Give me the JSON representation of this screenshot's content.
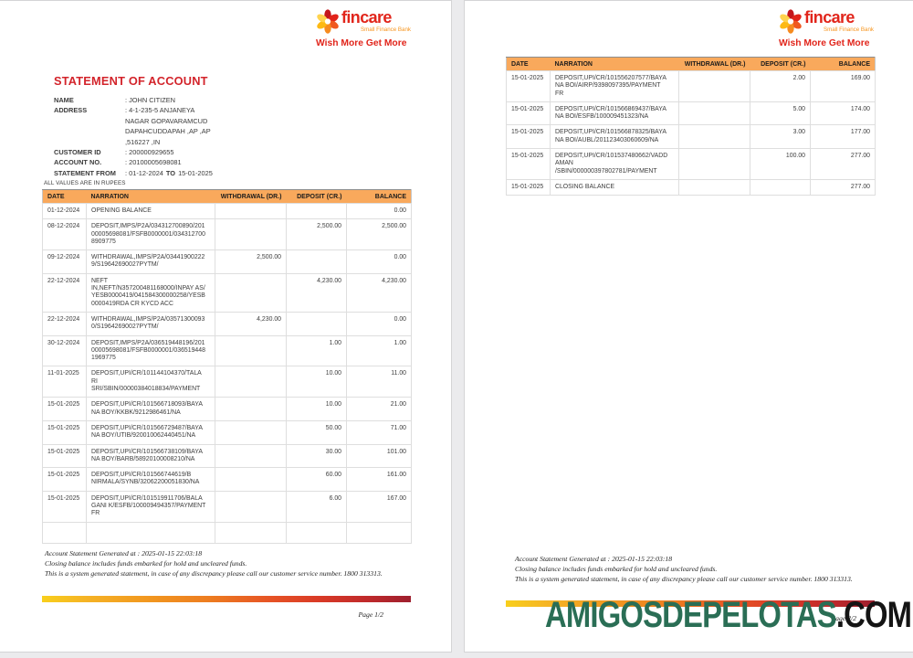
{
  "table_headers": [
    "DATE",
    "NARRATION",
    "WITHDRAWAL (DR.)",
    "DEPOSIT (CR.)",
    "BALANCE"
  ],
  "brand": {
    "name": "fincare",
    "subtitle": "Small Finance Bank",
    "tagline": "Wish More Get More",
    "colors": {
      "red": "#e1251b",
      "orange": "#f7941d",
      "yellow": "#fdb913",
      "table_header_orange": "#f9a95c",
      "watermark_green": "#2a6e55"
    }
  },
  "page1": {
    "title": "STATEMENT OF ACCOUNT",
    "info": {
      "name_label": "NAME",
      "name_value": ": JOHN CITIZEN",
      "address_label": "ADDRESS",
      "address_lines": [
        ": 4-1-235-5 ANJANEYA",
        "NAGAR GOPAVARAMCUD",
        "DAPAHCUDDAPAH ,AP ,AP",
        ",516227 ,IN"
      ],
      "customer_id_label": "CUSTOMER ID",
      "customer_id_value": ": 200000929655",
      "account_no_label": "ACCOUNT NO.",
      "account_no_value": ": 20100005698081",
      "statement_from_label": "STATEMENT FROM",
      "statement_from_pre": ": 01-12-2024",
      "statement_from_to": "TO",
      "statement_from_post": "15-01-2025"
    },
    "values_note": "ALL VALUES ARE IN RUPEES",
    "rows": [
      {
        "date": "01-12-2024",
        "narration": [
          "OPENING BALANCE"
        ],
        "withdrawal": "",
        "deposit": "",
        "balance": "0.00"
      },
      {
        "date": "08-12-2024",
        "narration": [
          "DEPOSIT,IMPS/P2A/034312700890/201",
          "00005698081/FSFB0000001/034312700",
          "8909775"
        ],
        "withdrawal": "",
        "deposit": "2,500.00",
        "balance": "2,500.00"
      },
      {
        "date": "09-12-2024",
        "narration": [
          "WITHDRAWAL,IMPS/P2A/03441900222",
          "9/S19642690027PYTM/"
        ],
        "withdrawal": "2,500.00",
        "deposit": "",
        "balance": "0.00"
      },
      {
        "date": "22-12-2024",
        "narration": [
          "NEFT",
          "IN,NEFT/N357200481168000/INPAY AS/",
          "YESB0000419/041584300000258/YESB",
          "0000419RDA CR KYCD ACC"
        ],
        "withdrawal": "",
        "deposit": "4,230.00",
        "balance": "4,230.00"
      },
      {
        "date": "22-12-2024",
        "narration": [
          "WITHDRAWAL,IMPS/P2A/03571300093",
          "0/S19642690027PYTM/"
        ],
        "withdrawal": "4,230.00",
        "deposit": "",
        "balance": "0.00"
      },
      {
        "date": "30-12-2024",
        "narration": [
          "DEPOSIT,IMPS/P2A/036519448196/201",
          "00005698081/FSFB0000001/036519448",
          "1969775"
        ],
        "withdrawal": "",
        "deposit": "1.00",
        "balance": "1.00"
      },
      {
        "date": "11-01-2025",
        "narration": [
          "DEPOSIT,UPI/CR/101144104370/TALA",
          "RI",
          "SRI/SBIN/00000384018834/PAYMENT"
        ],
        "withdrawal": "",
        "deposit": "10.00",
        "balance": "11.00"
      },
      {
        "date": "15-01-2025",
        "narration": [
          "DEPOSIT,UPI/CR/101566718093/BAYA",
          "NA BOY/KKBK/9212986461/NA"
        ],
        "withdrawal": "",
        "deposit": "10.00",
        "balance": "21.00"
      },
      {
        "date": "15-01-2025",
        "narration": [
          "DEPOSIT,UPI/CR/101566729487/BAYA",
          "NA BOY/UTIB/920010062440451/NA"
        ],
        "withdrawal": "",
        "deposit": "50.00",
        "balance": "71.00"
      },
      {
        "date": "15-01-2025",
        "narration": [
          "DEPOSIT,UPI/CR/101566738109/BAYA",
          "NA BOY/BARB/58920100008210/NA"
        ],
        "withdrawal": "",
        "deposit": "30.00",
        "balance": "101.00"
      },
      {
        "date": "15-01-2025",
        "narration": [
          "DEPOSIT,UPI/CR/101566744619/B",
          "NIRMALA/SYNB/32062200051830/NA"
        ],
        "withdrawal": "",
        "deposit": "60.00",
        "balance": "161.00"
      },
      {
        "date": "15-01-2025",
        "narration": [
          "DEPOSIT,UPI/CR/101519911706/BALA",
          "GANI K/ESFB/100009494357/PAYMENT",
          "FR"
        ],
        "withdrawal": "",
        "deposit": "6.00",
        "balance": "167.00"
      }
    ],
    "page_label": "Page 1/2"
  },
  "page2": {
    "rows": [
      {
        "date": "15-01-2025",
        "narration": [
          "DEPOSIT,UPI/CR/101556207577/BAYA",
          "NA BOI/AIRP/9398097395/PAYMENT",
          "FR"
        ],
        "withdrawal": "",
        "deposit": "2.00",
        "balance": "169.00"
      },
      {
        "date": "15-01-2025",
        "narration": [
          "DEPOSIT,UPI/CR/101566869437/BAYA",
          "NA BOI/ESFB/100009451323/NA"
        ],
        "withdrawal": "",
        "deposit": "5.00",
        "balance": "174.00"
      },
      {
        "date": "15-01-2025",
        "narration": [
          "DEPOSIT,UPI/CR/101566878325/BAYA",
          "NA BOI/AUBL/201123403060609/NA"
        ],
        "withdrawal": "",
        "deposit": "3.00",
        "balance": "177.00"
      },
      {
        "date": "15-01-2025",
        "narration": [
          "DEPOSIT,UPI/CR/101537480662/VADD",
          "AMAN",
          "/SBIN/000000397802781/PAYMENT"
        ],
        "withdrawal": "",
        "deposit": "100.00",
        "balance": "277.00"
      },
      {
        "date": "15-01-2025",
        "narration": [
          "CLOSING BALANCE"
        ],
        "withdrawal": "",
        "deposit": "",
        "balance": "277.00"
      }
    ],
    "page_label": "Page 2/2"
  },
  "footer_lines": [
    "Account Statement Generated at : 2025-01-15 22:03:18",
    "Closing balance includes funds embarked for hold and uncleared funds.",
    "This is a system generated statement, in case of any discrepancy please call our customer service number. 1800 313313."
  ],
  "watermark": {
    "main": "AMIGOSDEPELOTAS",
    "suffix": ".COM"
  }
}
